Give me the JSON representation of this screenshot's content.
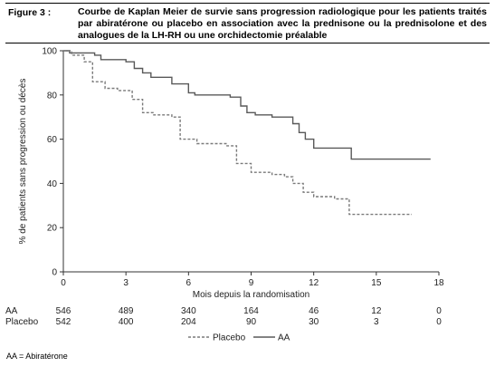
{
  "header": {
    "figure_label": "Figure 3 :",
    "caption": "Courbe de Kaplan Meier de survie sans progression radiologique pour les patients traités par abiratérone ou placebo en association avec la prednisone ou la prednisolone et des analogues de la LH-RH ou une orchidectomie préalable"
  },
  "chart_data": {
    "type": "line",
    "step": true,
    "xlabel": "Mois depuis la randomisation",
    "ylabel": "% de patients sans progression ou décès",
    "xlim": [
      0,
      18
    ],
    "ylim": [
      0,
      100
    ],
    "xticks": [
      0,
      3,
      6,
      9,
      12,
      15,
      18
    ],
    "yticks": [
      0,
      20,
      40,
      60,
      80,
      100
    ],
    "grid": false,
    "legend_position": "bottom-center",
    "series": [
      {
        "name": "AA",
        "color": "#595959",
        "dash": "solid",
        "x": [
          0,
          0.3,
          1.5,
          1.8,
          3.0,
          3.4,
          3.8,
          4.2,
          5.2,
          6.0,
          6.3,
          7.0,
          8.0,
          8.5,
          8.8,
          9.2,
          10.0,
          11.0,
          11.3,
          11.6,
          12.0,
          13.0,
          13.8,
          17.6
        ],
        "y": [
          100,
          99,
          98,
          96,
          95,
          92,
          90,
          88,
          85,
          81,
          80,
          80,
          79,
          75,
          72,
          71,
          70,
          67,
          63,
          60,
          56,
          56,
          51,
          51
        ]
      },
      {
        "name": "Placebo",
        "color": "#7a7a7a",
        "dash": "dashed",
        "x": [
          0,
          0.4,
          1.0,
          1.4,
          2.0,
          2.6,
          3.3,
          3.8,
          4.3,
          5.2,
          5.6,
          6.4,
          7.8,
          8.3,
          9.0,
          10.0,
          10.6,
          11.0,
          11.5,
          12.0,
          13.0,
          13.7,
          16.7
        ],
        "y": [
          100,
          98,
          95,
          86,
          83,
          82,
          78,
          72,
          71,
          70,
          60,
          58,
          57,
          49,
          45,
          44,
          43,
          40,
          36,
          34,
          33,
          26,
          26
        ]
      }
    ],
    "risk_table": {
      "times": [
        0,
        3,
        6,
        9,
        12,
        15,
        18
      ],
      "rows": [
        {
          "label": "AA",
          "values": [
            "546",
            "489",
            "340",
            "164",
            "46",
            "12",
            "0"
          ]
        },
        {
          "label": "Placebo",
          "values": [
            "542",
            "400",
            "204",
            "90",
            "30",
            "3",
            "0"
          ]
        }
      ]
    }
  },
  "footnote": "AA = Abiratérone"
}
